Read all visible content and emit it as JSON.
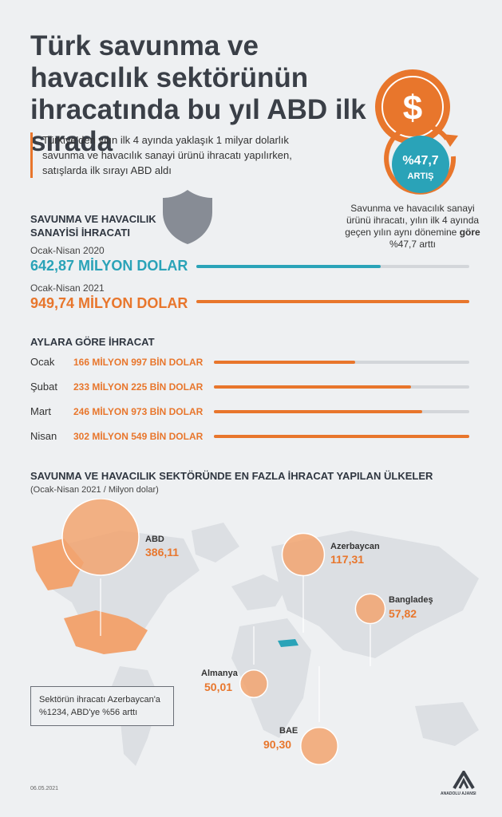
{
  "title": "Türk savunma ve havacılık sektörünün ihracatında bu yıl ABD ilk sırada",
  "subtitle": "Türkiye'den yılın ilk 4 ayında yaklaşık 1 milyar dolarlık savunma ve havacılık sanayi ürünü ihracatı yapılırken, satışlarda ilk sırayı ABD aldı",
  "badge": {
    "value": "%47,7",
    "label": "ARTIŞ",
    "currency": "$"
  },
  "badge_note": {
    "text": "Savunma ve havacılık sanayi ürünü ihracatı, yılın ilk 4 ayında geçen yılın aynı dönemine",
    "bold": "göre",
    "tail": "%47,7 arttı"
  },
  "colors": {
    "accent": "#e8762c",
    "teal": "#2aa3b8",
    "track": "#d3d6da",
    "circle": "#f2a470"
  },
  "chart_data": [
    {
      "type": "bar",
      "title": "SAVUNMA VE HAVACILIK SANAYİSİ İHRACATI",
      "categories": [
        "Ocak-Nisan 2020",
        "Ocak-Nisan 2021"
      ],
      "values": [
        642.87,
        949.74
      ],
      "value_labels": [
        "642,87 MİLYON DOLAR",
        "949,74 MİLYON DOLAR"
      ],
      "xlim": [
        0,
        949.74
      ]
    },
    {
      "type": "bar",
      "title": "AYLARA GÖRE İHRACAT",
      "categories": [
        "Ocak",
        "Şubat",
        "Mart",
        "Nisan"
      ],
      "values": [
        166.997,
        233.225,
        246.973,
        302.549
      ],
      "value_labels": [
        "166 MİLYON 997 BİN DOLAR",
        "233 MİLYON 225 BİN DOLAR",
        "246 MİLYON 973 BİN DOLAR",
        "302 MİLYON 549 BİN DOLAR"
      ],
      "xlim": [
        0,
        302.549
      ]
    },
    {
      "type": "scatter",
      "title": "SAVUNMA VE HAVACILIK SEKTÖRÜNDE EN FAZLA İHRACAT YAPILAN ÜLKELER",
      "subtitle": "(Ocak-Nisan 2021 / Milyon dolar)",
      "categories": [
        "ABD",
        "Azerbaycan",
        "Bangladeş",
        "Almanya",
        "BAE"
      ],
      "values": [
        386.11,
        117.31,
        57.82,
        50.01,
        90.3
      ],
      "value_labels": [
        "386,11",
        "117,31",
        "57,82",
        "50,01",
        "90,30"
      ]
    }
  ],
  "map_note": "Sektörün ihracatı Azerbaycan'a %1234, ABD'ye %56 arttı",
  "footer": {
    "date": "06.05.2021",
    "agency": "ANADOLU AJANSI"
  }
}
